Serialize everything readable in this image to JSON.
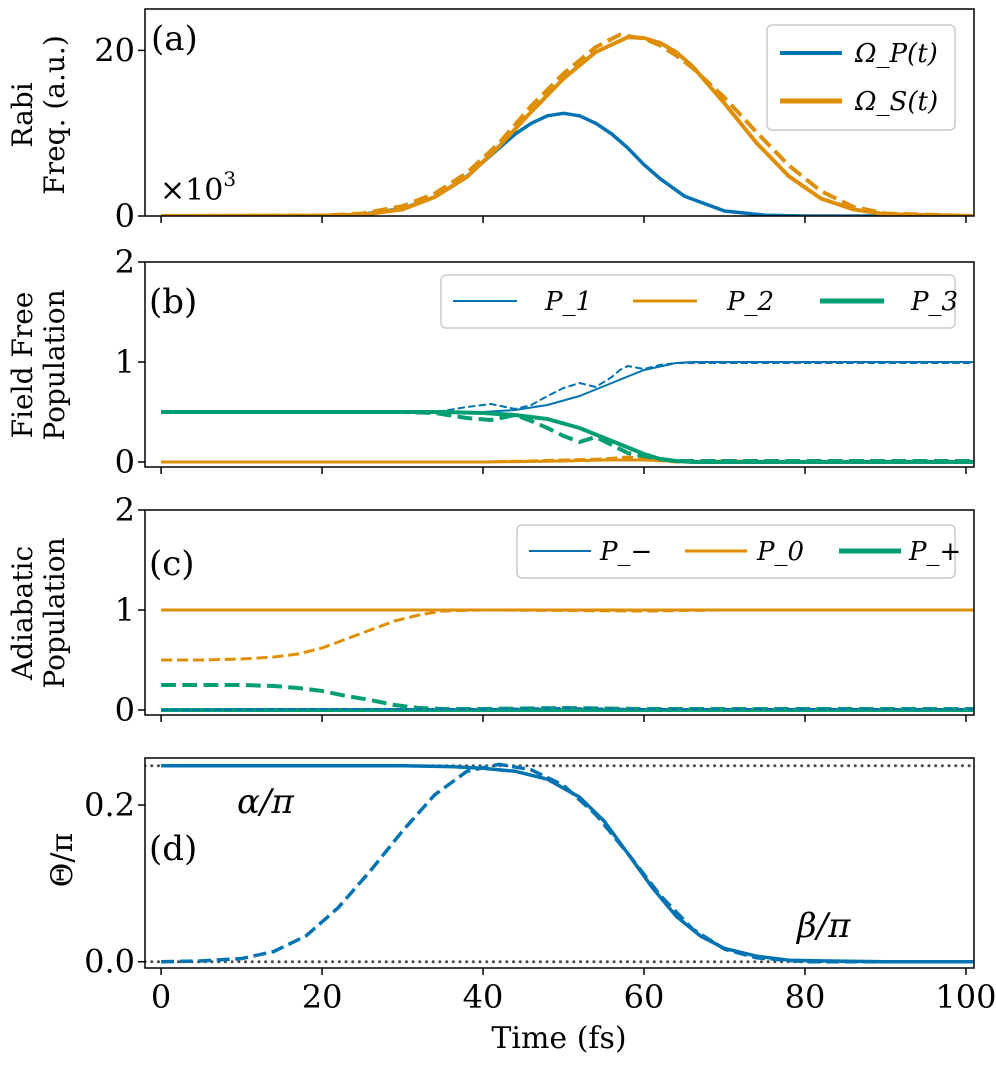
{
  "figure": {
    "xlabel": "Time (fs)",
    "xticks": [
      "0",
      "20",
      "40",
      "60",
      "80",
      "100"
    ],
    "xlim": [
      -2,
      101
    ]
  },
  "colors": {
    "blue": "#0173b2",
    "orange": "#de8f05",
    "green": "#029e73",
    "gray": "#4d4d4d"
  },
  "chart_data": [
    {
      "panel": "a",
      "type": "line",
      "tag": "(a)",
      "ylabel": [
        "Rabi",
        "Freq. (a.u.)"
      ],
      "ylim": [
        0,
        25
      ],
      "yticks": [
        0,
        20
      ],
      "ytick_labels": [
        "0",
        "20"
      ],
      "annotations": [
        "×10",
        "3"
      ],
      "legend": {
        "position": "top-right",
        "entries": [
          {
            "label": "Ω_P(t)",
            "color": "blue"
          },
          {
            "label": "Ω_S(t)",
            "color": "orange"
          }
        ]
      },
      "series": [
        {
          "name": "Ω_P(t)",
          "style": "solid",
          "color": "blue",
          "width": 3.5,
          "x": [
            0,
            20,
            25,
            30,
            34,
            38,
            42,
            44,
            46,
            48,
            50,
            52,
            54,
            56,
            58,
            60,
            62,
            65,
            70,
            75,
            80,
            101
          ],
          "y": [
            0,
            0.05,
            0.2,
            0.9,
            2.3,
            4.8,
            8.2,
            9.9,
            11.2,
            12.1,
            12.4,
            12.1,
            11.2,
            9.9,
            8.2,
            6.2,
            4.5,
            2.4,
            0.6,
            0.1,
            0,
            0
          ]
        },
        {
          "name": "Ω_S(t)",
          "style": "solid",
          "color": "orange",
          "width": 4,
          "x": [
            0,
            20,
            25,
            30,
            34,
            38,
            42,
            46,
            50,
            54,
            58,
            60,
            62,
            64,
            66,
            70,
            74,
            78,
            82,
            86,
            90,
            101
          ],
          "y": [
            0,
            0.05,
            0.15,
            0.8,
            2.3,
            4.7,
            8.4,
            12.6,
            16.6,
            19.8,
            21.6,
            21.5,
            20.9,
            19.8,
            18.1,
            13.6,
            8.8,
            4.8,
            2.1,
            0.8,
            0.2,
            0
          ]
        },
        {
          "name": "Ω_S fit",
          "style": "dashed",
          "color": "orange",
          "width": 4,
          "x": [
            0,
            20,
            25,
            30,
            34,
            38,
            42,
            46,
            50,
            54,
            57,
            60,
            62,
            64,
            66,
            70,
            74,
            78,
            82,
            86,
            90,
            101
          ],
          "y": [
            0,
            0.05,
            0.3,
            1.2,
            2.7,
            5.2,
            8.8,
            13.3,
            17.2,
            20.4,
            21.9,
            21.4,
            20.6,
            19.4,
            17.9,
            14.3,
            10.1,
            6.1,
            3,
            1.1,
            0.3,
            0
          ]
        }
      ]
    },
    {
      "panel": "b",
      "type": "line",
      "tag": "(b)",
      "ylabel": [
        "Field Free",
        "Population"
      ],
      "ylim": [
        -0.05,
        2
      ],
      "yticks": [
        0,
        1,
        2
      ],
      "ytick_labels": [
        "0",
        "1",
        "2"
      ],
      "legend": {
        "position": "top-right",
        "entries": [
          {
            "label": "P_1",
            "color": "blue"
          },
          {
            "label": "P_2",
            "color": "orange"
          },
          {
            "label": "P_3",
            "color": "green"
          }
        ]
      },
      "series": [
        {
          "name": "P_1",
          "style": "solid",
          "color": "blue",
          "width": 2,
          "x": [
            0,
            30,
            35,
            40,
            44,
            48,
            52,
            56,
            60,
            64,
            66,
            70,
            80,
            101
          ],
          "y": [
            0.5,
            0.5,
            0.5,
            0.5,
            0.52,
            0.57,
            0.66,
            0.79,
            0.92,
            0.99,
            1,
            1,
            1,
            1
          ]
        },
        {
          "name": "P_1 fit",
          "style": "dashed",
          "color": "blue",
          "width": 2,
          "x": [
            0,
            30,
            35,
            38,
            41,
            44,
            46,
            48,
            50,
            52,
            54,
            56,
            57,
            58,
            60,
            62,
            64,
            66,
            101
          ],
          "y": [
            0.5,
            0.5,
            0.51,
            0.55,
            0.58,
            0.53,
            0.57,
            0.66,
            0.74,
            0.79,
            0.75,
            0.85,
            0.92,
            0.96,
            0.93,
            0.97,
            0.99,
            0.99,
            0.99
          ]
        },
        {
          "name": "P_2",
          "style": "solid",
          "color": "orange",
          "width": 3,
          "x": [
            0,
            40,
            50,
            55,
            58,
            60,
            63,
            66,
            101
          ],
          "y": [
            0,
            0,
            0.01,
            0.02,
            0.02,
            0.02,
            0.01,
            0,
            0
          ]
        },
        {
          "name": "P_2 fit",
          "style": "dashed",
          "color": "orange",
          "width": 3,
          "x": [
            0,
            40,
            46,
            50,
            55,
            58,
            61,
            64,
            70,
            80,
            101
          ],
          "y": [
            0,
            0,
            0.01,
            0.02,
            0.03,
            0.05,
            0.02,
            0,
            0.01,
            0,
            0
          ]
        },
        {
          "name": "P_3",
          "style": "solid",
          "color": "green",
          "width": 4,
          "x": [
            0,
            30,
            35,
            40,
            44,
            48,
            52,
            56,
            60,
            62,
            64,
            66,
            101
          ],
          "y": [
            0.5,
            0.5,
            0.5,
            0.49,
            0.47,
            0.43,
            0.34,
            0.21,
            0.08,
            0.03,
            0.01,
            0,
            0
          ]
        },
        {
          "name": "P_3 fit",
          "style": "dashed",
          "color": "green",
          "width": 4,
          "x": [
            0,
            30,
            34,
            38,
            41,
            44,
            46,
            48,
            50,
            52,
            54,
            56,
            58,
            60,
            62,
            64,
            101
          ],
          "y": [
            0.5,
            0.5,
            0.49,
            0.44,
            0.42,
            0.47,
            0.41,
            0.34,
            0.26,
            0.2,
            0.25,
            0.17,
            0.09,
            0.06,
            0.03,
            0.01,
            0.01
          ]
        }
      ]
    },
    {
      "panel": "c",
      "type": "line",
      "tag": "(c)",
      "ylabel": [
        "Adiabatic",
        "Population"
      ],
      "ylim": [
        -0.05,
        2
      ],
      "yticks": [
        0,
        1,
        2
      ],
      "ytick_labels": [
        "0",
        "1",
        "2"
      ],
      "legend": {
        "position": "top-right",
        "entries": [
          {
            "label": "P_−",
            "color": "blue"
          },
          {
            "label": "P_0",
            "color": "orange"
          },
          {
            "label": "P_+",
            "color": "green"
          }
        ]
      },
      "series": [
        {
          "name": "P_−",
          "style": "solid",
          "color": "blue",
          "width": 2,
          "x": [
            0,
            101
          ],
          "y": [
            0,
            0
          ]
        },
        {
          "name": "P_0",
          "style": "solid",
          "color": "orange",
          "width": 3,
          "x": [
            0,
            101
          ],
          "y": [
            1,
            1
          ]
        },
        {
          "name": "P_+",
          "style": "solid",
          "color": "green",
          "width": 4,
          "x": [
            0,
            101
          ],
          "y": [
            0,
            0
          ]
        },
        {
          "name": "P_0 fit",
          "style": "dashed",
          "color": "orange",
          "width": 3,
          "x": [
            0,
            5,
            10,
            14,
            17,
            20,
            23,
            26,
            29,
            32,
            35,
            40,
            60,
            70,
            101
          ],
          "y": [
            0.5,
            0.5,
            0.51,
            0.53,
            0.56,
            0.62,
            0.71,
            0.8,
            0.89,
            0.95,
            0.99,
            1,
            0.99,
            1,
            1
          ]
        },
        {
          "name": "P_+ fit",
          "style": "dashed",
          "color": "green",
          "width": 4,
          "x": [
            0,
            5,
            10,
            14,
            17,
            20,
            23,
            26,
            29,
            32,
            35,
            40,
            50,
            60,
            101
          ],
          "y": [
            0.25,
            0.25,
            0.25,
            0.24,
            0.22,
            0.19,
            0.14,
            0.1,
            0.05,
            0.02,
            0.01,
            0.01,
            0.02,
            0.01,
            0.01
          ]
        },
        {
          "name": "P_− fit",
          "style": "dashed",
          "color": "blue",
          "width": 2,
          "x": [
            0,
            20,
            30,
            40,
            50,
            60,
            101
          ],
          "y": [
            0,
            0.01,
            0.01,
            0.01,
            0.02,
            0.01,
            0.01
          ]
        }
      ]
    },
    {
      "panel": "d",
      "type": "line",
      "tag": "(d)",
      "ylabel": [
        "Θ/π"
      ],
      "ylim": [
        -0.008,
        0.26
      ],
      "yticks": [
        0,
        0.2
      ],
      "ytick_labels": [
        "0.0",
        "0.2"
      ],
      "annotations": [
        "α/π",
        "β/π"
      ],
      "series": [
        {
          "name": "α/π reference",
          "style": "dotted",
          "color": "gray",
          "width": 3,
          "x": [
            -2,
            101
          ],
          "y": [
            0.25,
            0.25
          ]
        },
        {
          "name": "β/π reference",
          "style": "dotted",
          "color": "gray",
          "width": 3,
          "x": [
            -2,
            101
          ],
          "y": [
            0,
            0
          ]
        },
        {
          "name": "Θ/π",
          "style": "solid",
          "color": "blue",
          "width": 3.5,
          "x": [
            0,
            20,
            30,
            36,
            40,
            44,
            48,
            52,
            55,
            58,
            61,
            64,
            67,
            70,
            74,
            78,
            82,
            90,
            101
          ],
          "y": [
            0.25,
            0.25,
            0.25,
            0.249,
            0.247,
            0.243,
            0.233,
            0.21,
            0.18,
            0.138,
            0.095,
            0.058,
            0.033,
            0.017,
            0.007,
            0.002,
            0.001,
            0,
            0
          ]
        },
        {
          "name": "Θ/π fit",
          "style": "dashed",
          "color": "blue",
          "width": 3.5,
          "x": [
            0,
            5,
            10,
            14,
            18,
            22,
            26,
            30,
            34,
            38,
            42,
            46,
            50,
            54,
            58,
            62,
            66,
            70,
            74,
            80,
            101
          ],
          "y": [
            0,
            0.001,
            0.004,
            0.013,
            0.033,
            0.069,
            0.116,
            0.167,
            0.213,
            0.243,
            0.252,
            0.245,
            0.225,
            0.188,
            0.138,
            0.085,
            0.042,
            0.016,
            0.005,
            0,
            0
          ]
        }
      ]
    }
  ]
}
